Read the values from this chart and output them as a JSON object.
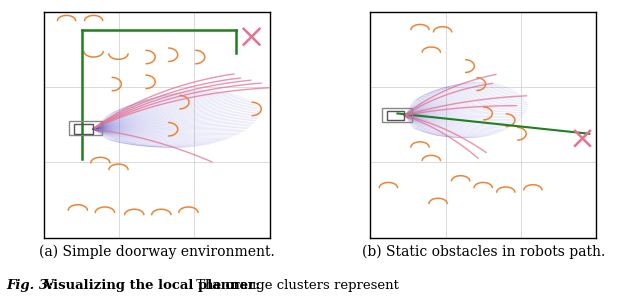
{
  "fig_width": 6.4,
  "fig_height": 2.97,
  "dpi": 100,
  "bg_color": "#ffffff",
  "caption_a": "(a) Simple doorway environment.",
  "caption_b": "(b) Static obstacles in robots path.",
  "caption_fontsize": 10.0,
  "fig_caption_prefix": "Fig. 3: ",
  "fig_caption_bold": "Visualizing the local planner:",
  "fig_caption_normal": " The orange clusters represent",
  "fig_caption_fontsize": 9.5,
  "orange_color": "#E87820",
  "pink_color": "#E87090",
  "blue_color": "#4040CC",
  "green_color": "#208020"
}
